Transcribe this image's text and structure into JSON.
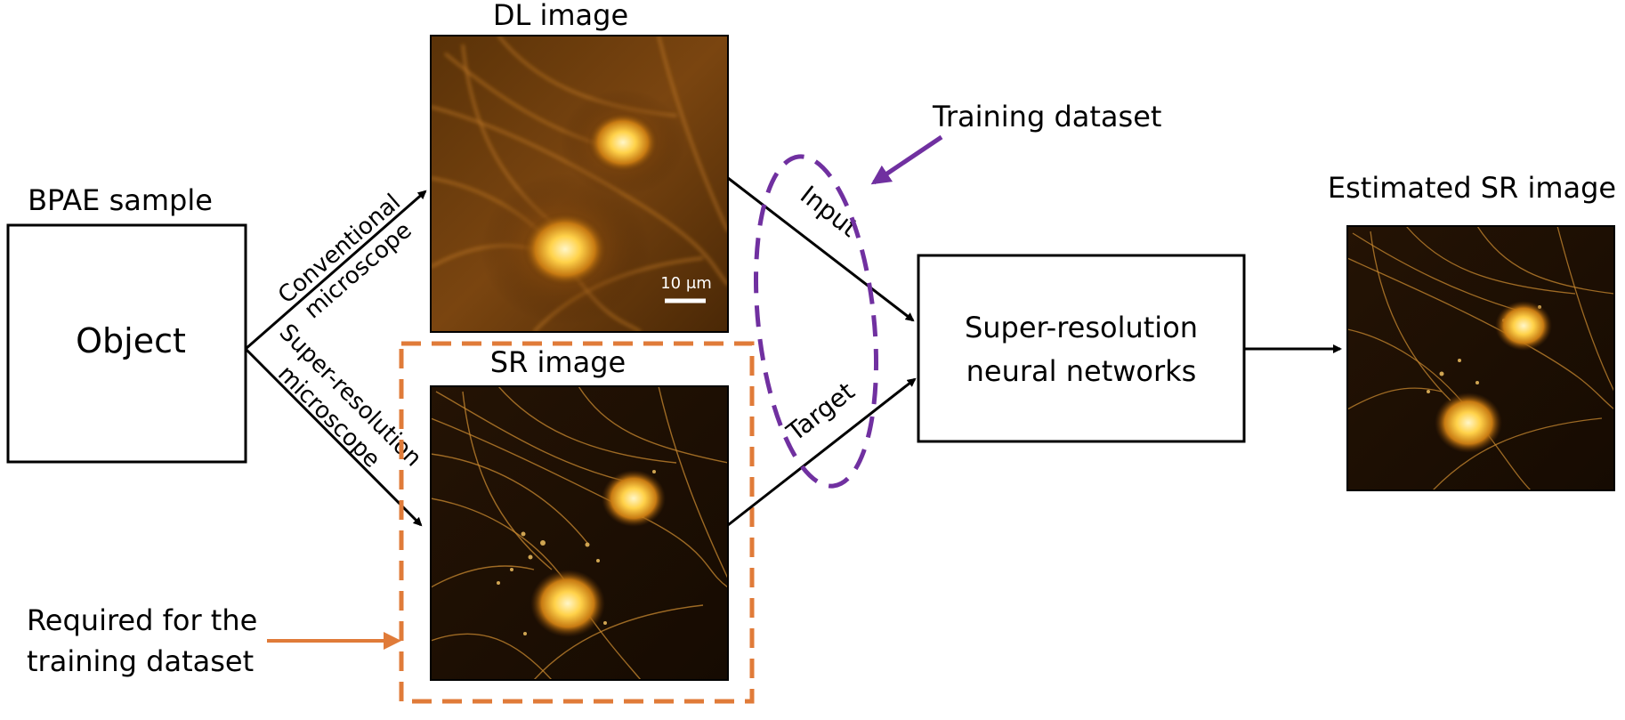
{
  "sample_label": "BPAE sample",
  "object_label": "Object",
  "dl_image": {
    "title": "DL image",
    "scale_bar": "10 μm"
  },
  "sr_image": {
    "title": "SR image"
  },
  "estimated_image": {
    "title": "Estimated SR image"
  },
  "paths": {
    "conventional": [
      "Conventional",
      "microscope"
    ],
    "super_resolution": [
      "Super-resolution",
      "microscope"
    ]
  },
  "arrow_labels": {
    "input": "Input",
    "target": "Target"
  },
  "network_label": [
    "Super-resolution",
    "neural networks"
  ],
  "training_dataset": "Training dataset",
  "required_note": [
    "Required for the",
    "training dataset"
  ],
  "colors": {
    "dashed_training": "#7030a0",
    "dashed_required": "#e07b39",
    "micro_background": "#1b0f04",
    "micro_glow": "#ffd24a"
  }
}
